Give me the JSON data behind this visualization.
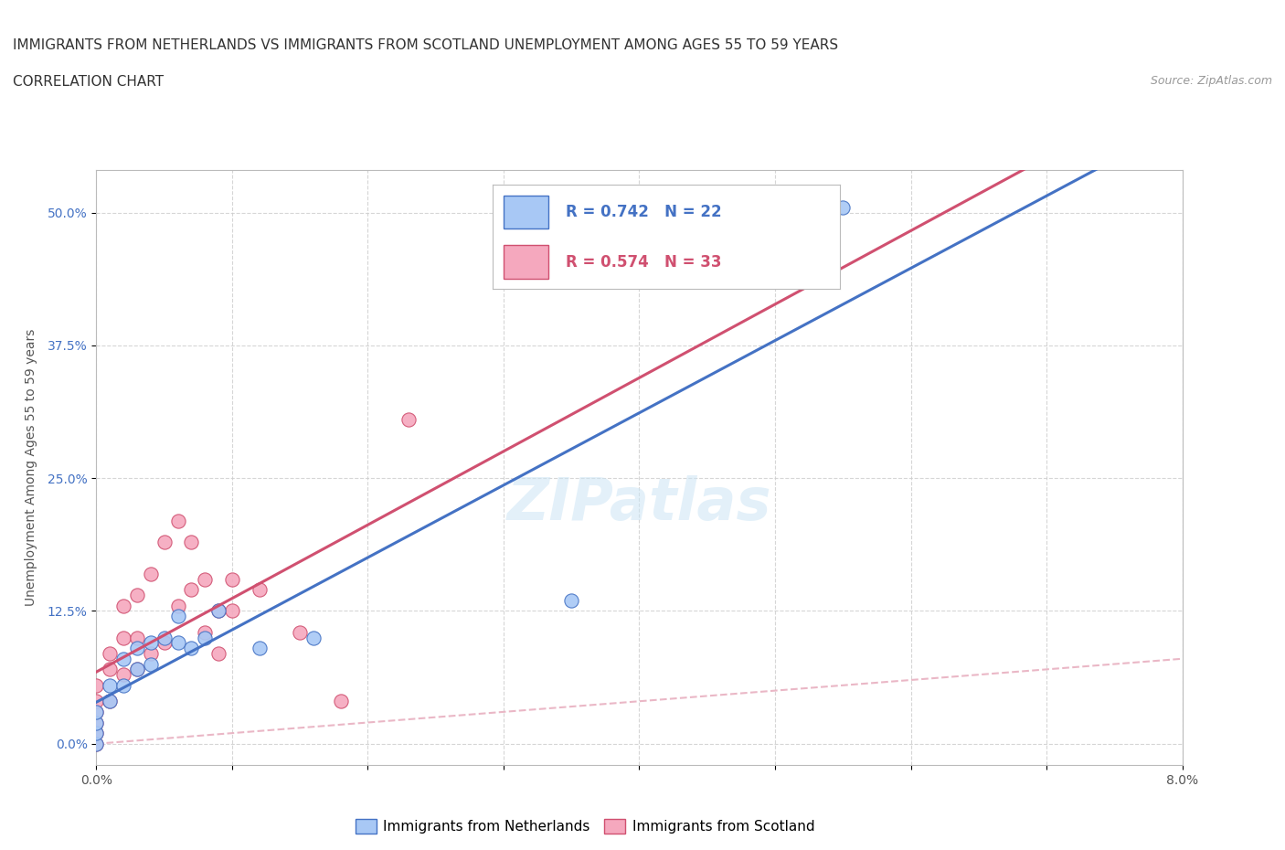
{
  "title_line1": "IMMIGRANTS FROM NETHERLANDS VS IMMIGRANTS FROM SCOTLAND UNEMPLOYMENT AMONG AGES 55 TO 59 YEARS",
  "title_line2": "CORRELATION CHART",
  "source_text": "Source: ZipAtlas.com",
  "ylabel": "Unemployment Among Ages 55 to 59 years",
  "xlim": [
    0.0,
    0.08
  ],
  "ylim": [
    -0.02,
    0.54
  ],
  "yticks": [
    0.0,
    0.125,
    0.25,
    0.375,
    0.5
  ],
  "ytick_labels": [
    "0.0%",
    "12.5%",
    "25.0%",
    "37.5%",
    "50.0%"
  ],
  "xticks": [
    0.0,
    0.01,
    0.02,
    0.03,
    0.04,
    0.05,
    0.06,
    0.07,
    0.08
  ],
  "xtick_labels": [
    "0.0%",
    "",
    "",
    "",
    "",
    "",
    "",
    "",
    "8.0%"
  ],
  "watermark_text": "ZIPatlas",
  "netherlands_color": "#a8c8f5",
  "scotland_color": "#f5a8be",
  "netherlands_line_color": "#4472c4",
  "scotland_line_color": "#d05070",
  "diagonal_color": "#e8b0c0",
  "netherlands_R": 0.742,
  "netherlands_N": 22,
  "scotland_R": 0.574,
  "scotland_N": 33,
  "netherlands_x": [
    0.0,
    0.0,
    0.0,
    0.0,
    0.001,
    0.001,
    0.002,
    0.002,
    0.003,
    0.003,
    0.004,
    0.004,
    0.005,
    0.006,
    0.006,
    0.007,
    0.008,
    0.009,
    0.012,
    0.016,
    0.035,
    0.055
  ],
  "netherlands_y": [
    0.0,
    0.01,
    0.02,
    0.03,
    0.04,
    0.055,
    0.055,
    0.08,
    0.07,
    0.09,
    0.075,
    0.095,
    0.1,
    0.095,
    0.12,
    0.09,
    0.1,
    0.125,
    0.09,
    0.1,
    0.135,
    0.505
  ],
  "scotland_x": [
    0.0,
    0.0,
    0.0,
    0.0,
    0.0,
    0.0,
    0.001,
    0.001,
    0.001,
    0.002,
    0.002,
    0.002,
    0.003,
    0.003,
    0.003,
    0.004,
    0.004,
    0.005,
    0.005,
    0.006,
    0.006,
    0.007,
    0.007,
    0.008,
    0.008,
    0.009,
    0.009,
    0.01,
    0.01,
    0.012,
    0.015,
    0.018,
    0.023
  ],
  "scotland_y": [
    0.0,
    0.01,
    0.02,
    0.03,
    0.04,
    0.055,
    0.04,
    0.07,
    0.085,
    0.065,
    0.1,
    0.13,
    0.07,
    0.1,
    0.14,
    0.085,
    0.16,
    0.095,
    0.19,
    0.13,
    0.21,
    0.145,
    0.19,
    0.155,
    0.105,
    0.125,
    0.085,
    0.125,
    0.155,
    0.145,
    0.105,
    0.04,
    0.305
  ],
  "background_color": "#ffffff",
  "grid_color": "#cccccc",
  "title_fontsize": 11,
  "axis_label_fontsize": 10,
  "tick_fontsize": 10
}
